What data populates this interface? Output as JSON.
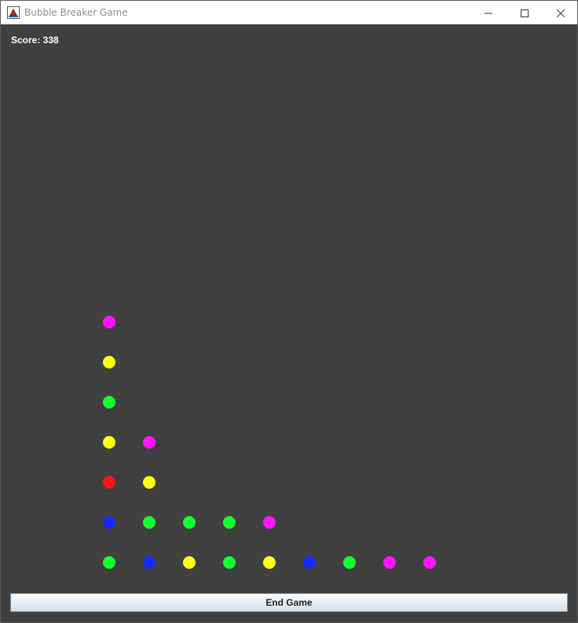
{
  "window": {
    "title": "Bubble Breaker Game",
    "controls": {
      "minimize_icon": "minimize-icon",
      "maximize_icon": "maximize-icon",
      "close_icon": "close-icon"
    }
  },
  "game": {
    "score_text": "Score: 338",
    "end_button_label": "End Game",
    "colors": {
      "magenta": "#ff14ff",
      "yellow": "#ffff14",
      "green": "#14ff32",
      "red": "#ff1414",
      "blue": "#1428ff"
    },
    "grid": {
      "columns": [
        [
          "green",
          "blue",
          "red",
          "yellow",
          "green",
          "yellow",
          "magenta"
        ],
        [
          "blue",
          "green",
          "yellow",
          "magenta"
        ],
        [
          "yellow",
          "green"
        ],
        [
          "green",
          "green"
        ],
        [
          "yellow",
          "magenta"
        ],
        [
          "blue"
        ],
        [
          "green"
        ],
        [
          "magenta"
        ],
        [
          "magenta"
        ]
      ]
    }
  }
}
